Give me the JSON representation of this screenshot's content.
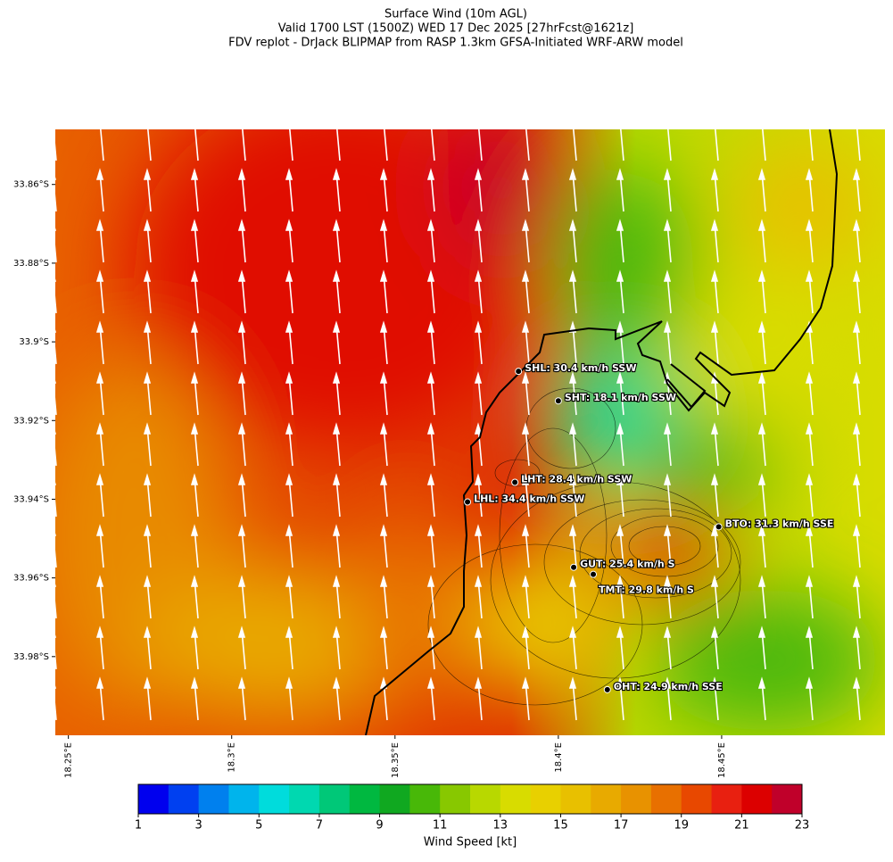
{
  "header": {
    "lines": [
      "Surface Wind (10m AGL)",
      "Valid 1700 LST (1500Z) WED 17 Dec 2025 [27hrFcst@1621z]",
      "FDV replot - DrJack BLIPMAP from RASP 1.3km GFSA-Initiated WRF-ARW model"
    ]
  },
  "map": {
    "lon_range": [
      18.246,
      18.5
    ],
    "lat_range": [
      -34.0,
      -33.846
    ],
    "lat_ticks": [
      {
        "value": -33.86,
        "label": "33.86°S"
      },
      {
        "value": -33.88,
        "label": "33.88°S"
      },
      {
        "value": -33.9,
        "label": "33.9°S"
      },
      {
        "value": -33.92,
        "label": "33.92°S"
      },
      {
        "value": -33.94,
        "label": "33.94°S"
      },
      {
        "value": -33.96,
        "label": "33.96°S"
      },
      {
        "value": -33.98,
        "label": "33.98°S"
      }
    ],
    "lon_ticks": [
      {
        "value": 18.25,
        "label": "18.25°E"
      },
      {
        "value": 18.3,
        "label": "18.3°E"
      },
      {
        "value": 18.35,
        "label": "18.35°E"
      },
      {
        "value": 18.4,
        "label": "18.4°E"
      },
      {
        "value": 18.45,
        "label": "18.45°E"
      }
    ],
    "stations": [
      {
        "lon": 18.3878,
        "lat": -33.9075,
        "label": "SHL: 30.4 km/h SSW"
      },
      {
        "lon": 18.4,
        "lat": -33.915,
        "label": "SHT: 18.1 km/h SSW"
      },
      {
        "lon": 18.3867,
        "lat": -33.9357,
        "label": "LHT: 28.4 km/h SSW"
      },
      {
        "lon": 18.3722,
        "lat": -33.9407,
        "label": "LHL: 34.4 km/h SSW"
      },
      {
        "lon": 18.4491,
        "lat": -33.947,
        "label": "BTO: 31.3 km/h SSE"
      },
      {
        "lon": 18.4047,
        "lat": -33.9573,
        "label": "GUT: 25.4 km/h S"
      },
      {
        "lon": 18.4107,
        "lat": -33.9591,
        "label": "TMT: 29.8 km/h S"
      },
      {
        "lon": 18.415,
        "lat": -33.9884,
        "label": "OHT: 24.9 km/h SSE"
      }
    ]
  },
  "colorbar": {
    "label": "Wind Speed [kt]",
    "range": [
      1,
      23
    ],
    "ticks": [
      1,
      3,
      5,
      7,
      9,
      11,
      13,
      15,
      17,
      19,
      21,
      23
    ],
    "colors": [
      "#0000ee",
      "#0040f0",
      "#0080ee",
      "#00b4ec",
      "#00dcdc",
      "#00d8b0",
      "#00c878",
      "#00b840",
      "#10a820",
      "#48b808",
      "#88c800",
      "#b8d800",
      "#d8dc00",
      "#e8d000",
      "#e8c000",
      "#e8aa00",
      "#e89200",
      "#e87000",
      "#e84800",
      "#e82010",
      "#dc0000",
      "#c0002a"
    ]
  }
}
